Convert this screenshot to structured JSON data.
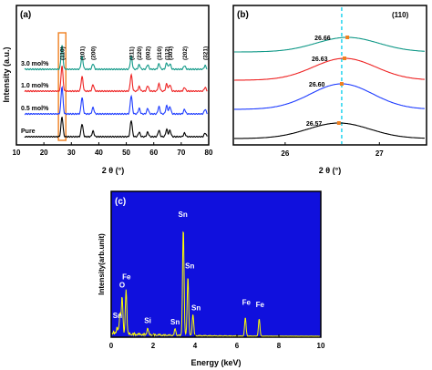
{
  "chart_data": [
    {
      "type": "line",
      "panel_label": "(a)",
      "xlabel": "2 θ (°)",
      "ylabel": "Intensity (a.u.)",
      "xlim": [
        10,
        80
      ],
      "xticks": [
        "10",
        "20",
        "30",
        "40",
        "50",
        "60",
        "70",
        "80"
      ],
      "peaks_x": [
        26.6,
        33.9,
        37.9,
        51.8,
        54.7,
        57.8,
        61.9,
        64.7,
        65.9,
        71.2,
        78.7
      ],
      "peak_labels": [
        {
          "text": "(110)",
          "x": 26.6
        },
        {
          "text": "(101)",
          "x": 33.9
        },
        {
          "text": "(200)",
          "x": 37.9
        },
        {
          "text": "(211)",
          "x": 51.8
        },
        {
          "text": "(220)",
          "x": 54.7
        },
        {
          "text": "(002)",
          "x": 57.8
        },
        {
          "text": "(310)",
          "x": 61.9
        },
        {
          "text": "(112)",
          "x": 64.7
        },
        {
          "text": "(301)",
          "x": 65.9
        },
        {
          "text": "(202)",
          "x": 71.2
        },
        {
          "text": "(321)",
          "x": 78.7
        }
      ],
      "highlight_x_range": [
        25.3,
        28.0
      ],
      "series": [
        {
          "name": "Pure",
          "color": "#000000",
          "offset": 0,
          "peak_heights": [
            22,
            14,
            6,
            18,
            5,
            5,
            7,
            8,
            7,
            4,
            4
          ]
        },
        {
          "name": "0.5 mol%",
          "color": "#1e3cff",
          "offset": 1,
          "peak_heights": [
            30,
            18,
            7,
            20,
            6,
            6,
            8,
            9,
            8,
            5,
            5
          ]
        },
        {
          "name": "1.0 mol%",
          "color": "#ee2222",
          "offset": 2,
          "peak_heights": [
            28,
            16,
            7,
            18,
            5,
            6,
            8,
            8,
            7,
            4,
            4
          ]
        },
        {
          "name": "3.0 mol%",
          "color": "#119988",
          "offset": 3,
          "peak_heights": [
            26,
            14,
            6,
            14,
            5,
            5,
            6,
            7,
            6,
            4,
            4
          ]
        }
      ]
    },
    {
      "type": "line",
      "panel_label": "(b)",
      "title": "(110)",
      "xlabel": "2 θ (°)",
      "xlim": [
        25.45,
        27.5
      ],
      "xticks": [
        "26",
        "27"
      ],
      "reference_line_x": 26.6,
      "series": [
        {
          "name": "Pure",
          "color": "#000000",
          "peak_x": 26.57,
          "label": "26.57"
        },
        {
          "name": "0.5 mol%",
          "color": "#1e3cff",
          "peak_x": 26.6,
          "label": "26.60"
        },
        {
          "name": "1.0 mol%",
          "color": "#ee2222",
          "peak_x": 26.63,
          "label": "26.63"
        },
        {
          "name": "3.0 mol%",
          "color": "#119988",
          "peak_x": 26.66,
          "label": "26.66"
        }
      ],
      "marker_color": "#f08020"
    },
    {
      "type": "line",
      "panel_label": "(c)",
      "xlabel": "Energy (keV)",
      "ylabel": "Intensity(arb.unit)",
      "xlim": [
        0,
        10
      ],
      "xticks": [
        "0",
        "2",
        "4",
        "6",
        "8",
        "10"
      ],
      "background_color": "#1010dd",
      "line_color": "#ffff00",
      "peaks": [
        {
          "x": 0.28,
          "height": 6
        },
        {
          "x": 0.42,
          "height": 18
        },
        {
          "x": 0.52,
          "height": 35
        },
        {
          "x": 0.71,
          "height": 42
        },
        {
          "x": 1.74,
          "height": 6
        },
        {
          "x": 3.05,
          "height": 6
        },
        {
          "x": 3.44,
          "height": 100
        },
        {
          "x": 3.66,
          "height": 55
        },
        {
          "x": 3.9,
          "height": 20
        },
        {
          "x": 6.4,
          "height": 17
        },
        {
          "x": 7.06,
          "height": 16
        }
      ],
      "element_labels": [
        {
          "text": "Sn",
          "x": 0.3,
          "height": 18
        },
        {
          "text": "O",
          "x": 0.52,
          "height": 46
        },
        {
          "text": "Fe",
          "x": 0.73,
          "height": 54
        },
        {
          "text": "Si",
          "x": 1.74,
          "height": 13
        },
        {
          "text": "Sn",
          "x": 3.42,
          "height": 112
        },
        {
          "text": "Sn",
          "x": 3.75,
          "height": 64
        },
        {
          "text": "Sn",
          "x": 3.05,
          "height": 12
        },
        {
          "text": "Sn",
          "x": 4.05,
          "height": 25
        },
        {
          "text": "Fe",
          "x": 6.45,
          "height": 30
        },
        {
          "text": "Fe",
          "x": 7.1,
          "height": 28
        }
      ]
    }
  ]
}
